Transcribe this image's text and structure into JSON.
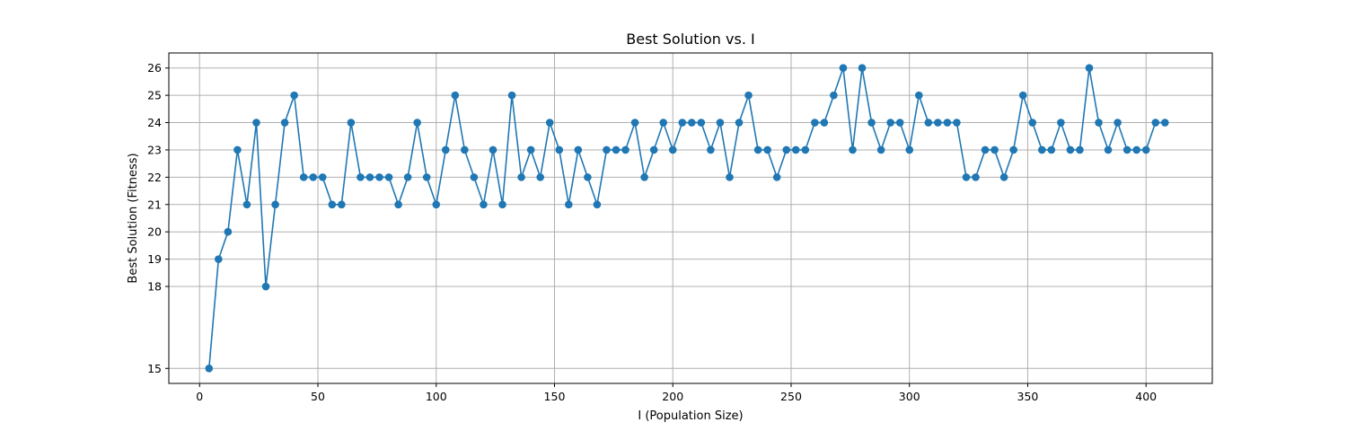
{
  "chart_data": {
    "type": "line",
    "title": "Best Solution vs. I",
    "xlabel": "I (Population Size)",
    "ylabel": "Best Solution (Fitness)",
    "xlim": [
      -13,
      428
    ],
    "ylim": [
      14.45,
      26.55
    ],
    "xticks": [
      0,
      50,
      100,
      150,
      200,
      250,
      300,
      350,
      400
    ],
    "yticks": [
      15,
      18,
      19,
      20,
      21,
      22,
      23,
      24,
      25,
      26
    ],
    "grid": true,
    "color": "#1f77b4",
    "marker": "circle",
    "x": [
      4,
      8,
      12,
      16,
      20,
      24,
      28,
      32,
      36,
      40,
      44,
      48,
      52,
      56,
      60,
      64,
      68,
      72,
      76,
      80,
      84,
      88,
      92,
      96,
      100,
      104,
      108,
      112,
      116,
      120,
      124,
      128,
      132,
      136,
      140,
      144,
      148,
      152,
      156,
      160,
      164,
      168,
      172,
      176,
      180,
      184,
      188,
      192,
      196,
      200,
      204,
      208,
      212,
      216,
      220,
      224,
      228,
      232,
      236,
      240,
      244,
      248,
      252,
      256,
      260,
      264,
      268,
      272,
      276,
      280,
      284,
      288,
      292,
      296,
      300,
      304,
      308,
      312,
      316,
      320,
      324,
      328,
      332,
      336,
      340,
      344,
      348,
      352,
      356,
      360,
      364,
      368,
      372,
      376,
      380,
      384,
      388,
      392,
      396,
      400,
      404,
      408
    ],
    "y": [
      15,
      19,
      20,
      23,
      21,
      24,
      18,
      21,
      24,
      25,
      22,
      22,
      22,
      21,
      21,
      24,
      22,
      22,
      22,
      22,
      21,
      22,
      24,
      22,
      21,
      23,
      25,
      23,
      22,
      21,
      23,
      21,
      25,
      22,
      23,
      22,
      24,
      23,
      21,
      23,
      22,
      21,
      23,
      23,
      23,
      24,
      22,
      23,
      24,
      23,
      24,
      24,
      24,
      23,
      24,
      22,
      24,
      25,
      23,
      23,
      22,
      23,
      23,
      23,
      24,
      24,
      25,
      26,
      23,
      26,
      24,
      23,
      24,
      24,
      23,
      25,
      24,
      24,
      24,
      24,
      22,
      22,
      23,
      23,
      22,
      23,
      25,
      24,
      23,
      23,
      24,
      23,
      23,
      26,
      24,
      23,
      24,
      23,
      23,
      23,
      24,
      24
    ]
  }
}
